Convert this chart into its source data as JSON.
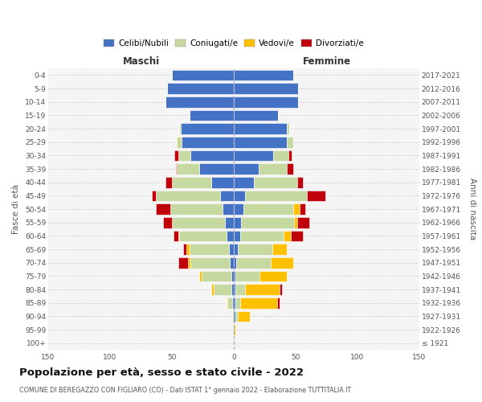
{
  "age_groups": [
    "100+",
    "95-99",
    "90-94",
    "85-89",
    "80-84",
    "75-79",
    "70-74",
    "65-69",
    "60-64",
    "55-59",
    "50-54",
    "45-49",
    "40-44",
    "35-39",
    "30-34",
    "25-29",
    "20-24",
    "15-19",
    "10-14",
    "5-9",
    "0-4"
  ],
  "birth_years": [
    "≤ 1921",
    "1922-1926",
    "1927-1931",
    "1932-1936",
    "1937-1941",
    "1942-1946",
    "1947-1951",
    "1952-1956",
    "1957-1961",
    "1962-1966",
    "1967-1971",
    "1972-1976",
    "1977-1981",
    "1982-1986",
    "1987-1991",
    "1992-1996",
    "1997-2001",
    "2002-2006",
    "2007-2011",
    "2012-2016",
    "2017-2021"
  ],
  "maschi": {
    "celibi": [
      0,
      0,
      0,
      1,
      2,
      2,
      3,
      4,
      6,
      7,
      9,
      11,
      18,
      28,
      35,
      42,
      43,
      36,
      55,
      54,
      50
    ],
    "coniugati": [
      0,
      0,
      1,
      4,
      14,
      24,
      32,
      32,
      38,
      43,
      42,
      52,
      32,
      18,
      10,
      4,
      1,
      0,
      0,
      0,
      0
    ],
    "vedovi": [
      0,
      0,
      0,
      1,
      2,
      2,
      2,
      2,
      1,
      0,
      0,
      0,
      0,
      0,
      0,
      1,
      0,
      0,
      0,
      0,
      0
    ],
    "divorziati": [
      0,
      0,
      0,
      0,
      0,
      0,
      8,
      3,
      4,
      7,
      12,
      3,
      5,
      1,
      3,
      0,
      0,
      0,
      0,
      0,
      0
    ]
  },
  "femmine": {
    "nubili": [
      0,
      0,
      1,
      1,
      1,
      1,
      2,
      3,
      5,
      6,
      8,
      9,
      16,
      20,
      32,
      43,
      43,
      36,
      52,
      52,
      48
    ],
    "coniugate": [
      0,
      0,
      2,
      4,
      8,
      20,
      28,
      28,
      35,
      43,
      40,
      50,
      35,
      23,
      12,
      5,
      2,
      0,
      0,
      0,
      0
    ],
    "vedove": [
      0,
      1,
      10,
      30,
      28,
      22,
      18,
      12,
      6,
      2,
      5,
      0,
      0,
      0,
      0,
      0,
      0,
      0,
      0,
      0,
      0
    ],
    "divorziate": [
      0,
      0,
      0,
      2,
      2,
      0,
      0,
      0,
      10,
      10,
      5,
      15,
      5,
      5,
      3,
      0,
      0,
      0,
      0,
      0,
      0
    ]
  },
  "colors": {
    "celibi": "#4472C4",
    "coniugati": "#c5d9a0",
    "vedovi": "#ffc000",
    "divorziati": "#c0000b"
  },
  "xlim": 150,
  "title": "Popolazione per età, sesso e stato civile - 2022",
  "subtitle": "COMUNE DI BEREGAZZO CON FIGLIARO (CO) - Dati ISTAT 1° gennaio 2022 - Elaborazione TUTTITALIA.IT",
  "xlabel_left": "Maschi",
  "xlabel_right": "Femmine",
  "ylabel_left": "Fasce di età",
  "ylabel_right": "Anni di nascita",
  "legend_labels": [
    "Celibi/Nubili",
    "Coniugati/e",
    "Vedovi/e",
    "Divorziati/e"
  ],
  "bg_color": "#f5f5f5",
  "bar_height": 0.82
}
